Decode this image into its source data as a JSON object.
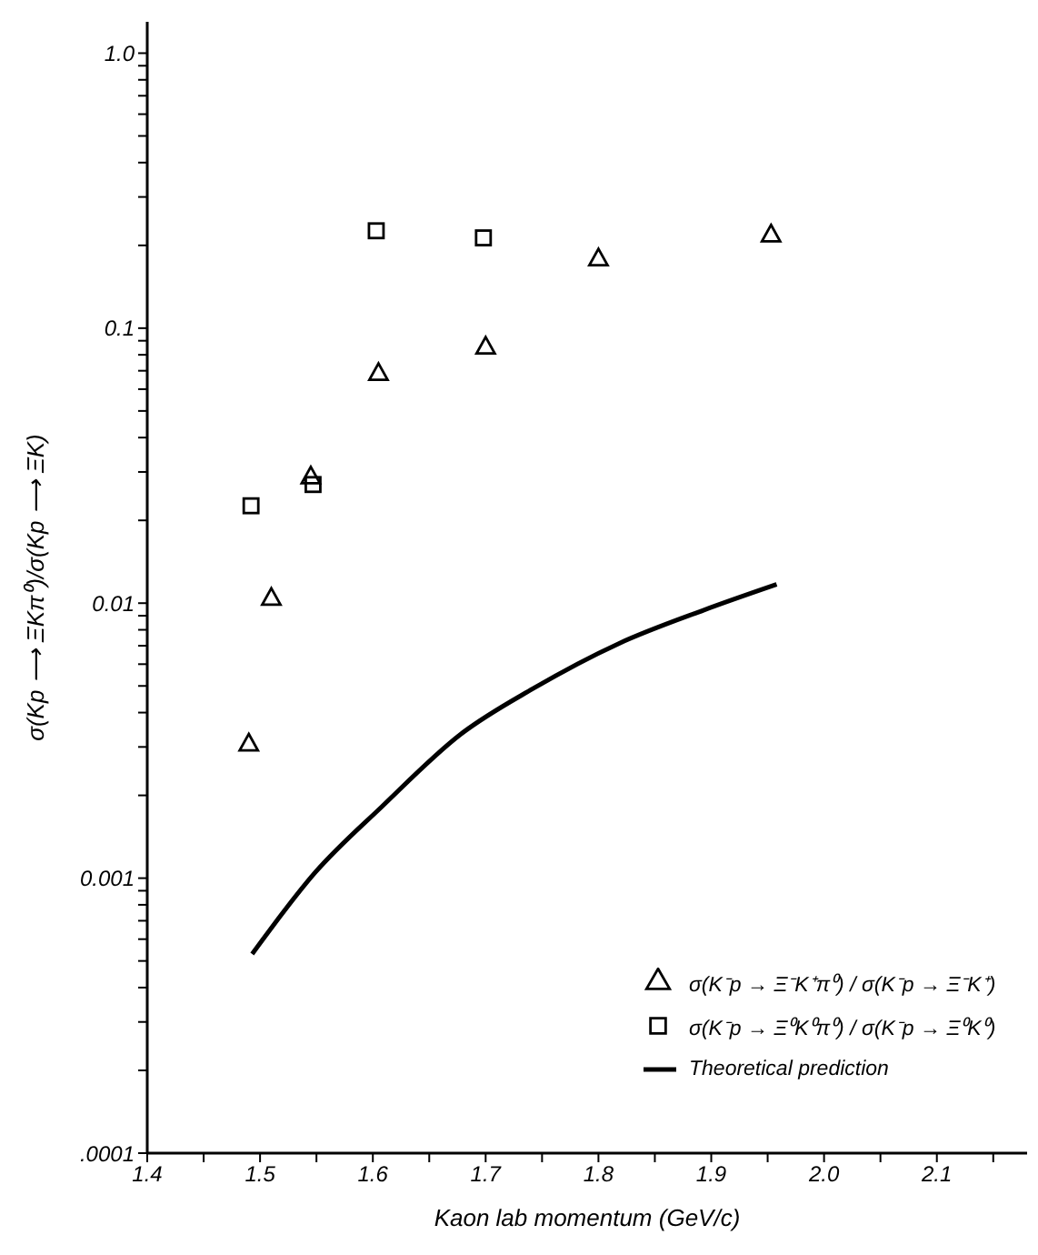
{
  "chart_data": {
    "type": "scatter",
    "xlabel": "Kaon lab momentum (GeV/c)",
    "ylabel": "σ(Kp ⟶ ΞKπ⁰)/σ(Kp ⟶ ΞK)",
    "log": "y",
    "legend": "bottom right",
    "xlim": [
      1.4,
      2.18
    ],
    "xticks": [
      1.4,
      {
        "value": 1.45,
        "label": null
      },
      1.5,
      {
        "value": 1.55,
        "label": null
      },
      1.6,
      {
        "value": 1.65,
        "label": null
      },
      1.7,
      {
        "value": 1.75,
        "label": null
      },
      1.8,
      {
        "value": 1.85,
        "label": null
      },
      1.9,
      {
        "value": 1.95,
        "label": null
      },
      {
        "value": 2.0,
        "label": "2.0"
      },
      {
        "value": 2.05,
        "label": null
      },
      2.1,
      {
        "value": 2.15,
        "label": null
      }
    ],
    "ylim": [
      0.0001,
      1.3
    ],
    "yticks": [
      {
        "value": 0.0001,
        "label": ".0001"
      },
      {
        "value": 0.0002,
        "label": null
      },
      {
        "value": 0.0003,
        "label": null
      },
      {
        "value": 0.0004,
        "label": null
      },
      {
        "value": 0.0005,
        "label": null
      },
      {
        "value": 0.0006,
        "label": null
      },
      {
        "value": 0.0007,
        "label": null
      },
      {
        "value": 0.0008,
        "label": null
      },
      {
        "value": 0.0009,
        "label": null
      },
      0.001,
      {
        "value": 0.002,
        "label": null
      },
      {
        "value": 0.003,
        "label": null
      },
      {
        "value": 0.004,
        "label": null
      },
      {
        "value": 0.005,
        "label": null
      },
      {
        "value": 0.006,
        "label": null
      },
      {
        "value": 0.007,
        "label": null
      },
      {
        "value": 0.008,
        "label": null
      },
      {
        "value": 0.009,
        "label": null
      },
      0.01,
      {
        "value": 0.02,
        "label": null
      },
      {
        "value": 0.03,
        "label": null
      },
      {
        "value": 0.04,
        "label": null
      },
      {
        "value": 0.05,
        "label": null
      },
      {
        "value": 0.06,
        "label": null
      },
      {
        "value": 0.07,
        "label": null
      },
      {
        "value": 0.08,
        "label": null
      },
      {
        "value": 0.09,
        "label": null
      },
      0.1,
      {
        "value": 0.2,
        "label": null
      },
      {
        "value": 0.3,
        "label": null
      },
      {
        "value": 0.4,
        "label": null
      },
      {
        "value": 0.5,
        "label": null
      },
      {
        "value": 0.6,
        "label": null
      },
      {
        "value": 0.7,
        "label": null
      },
      {
        "value": 0.8,
        "label": null
      },
      {
        "value": 0.9,
        "label": null
      },
      {
        "value": 1.0,
        "label": "1.0"
      }
    ],
    "series": [
      {
        "name": "σ(K⁻p → Ξ⁻K⁺π⁰) / σ(K⁻p → Ξ⁻K⁺)",
        "marker": "triangle",
        "color": "#000000",
        "x": [
          1.49,
          1.51,
          1.545,
          1.605,
          1.7,
          1.8,
          1.953
        ],
        "values": [
          0.0031,
          0.0105,
          0.029,
          0.069,
          0.086,
          0.18,
          0.22
        ]
      },
      {
        "name": "σ(K⁻p → Ξ⁰K⁰π⁰) / σ(K⁻p → Ξ⁰K⁰)",
        "marker": "square",
        "color": "#000000",
        "x": [
          1.492,
          1.547,
          1.603,
          1.698
        ],
        "values": [
          0.0226,
          0.027,
          0.226,
          0.213
        ]
      },
      {
        "name": "Theoretical prediction",
        "type": "line",
        "marker": "none",
        "line_style": "solid",
        "color": "#000000",
        "x": [
          1.493,
          1.549,
          1.608,
          1.678,
          1.742,
          1.818,
          1.893,
          1.958
        ],
        "values": [
          0.00053,
          0.00105,
          0.00182,
          0.00334,
          0.00489,
          0.00713,
          0.00942,
          0.0117
        ]
      }
    ]
  }
}
